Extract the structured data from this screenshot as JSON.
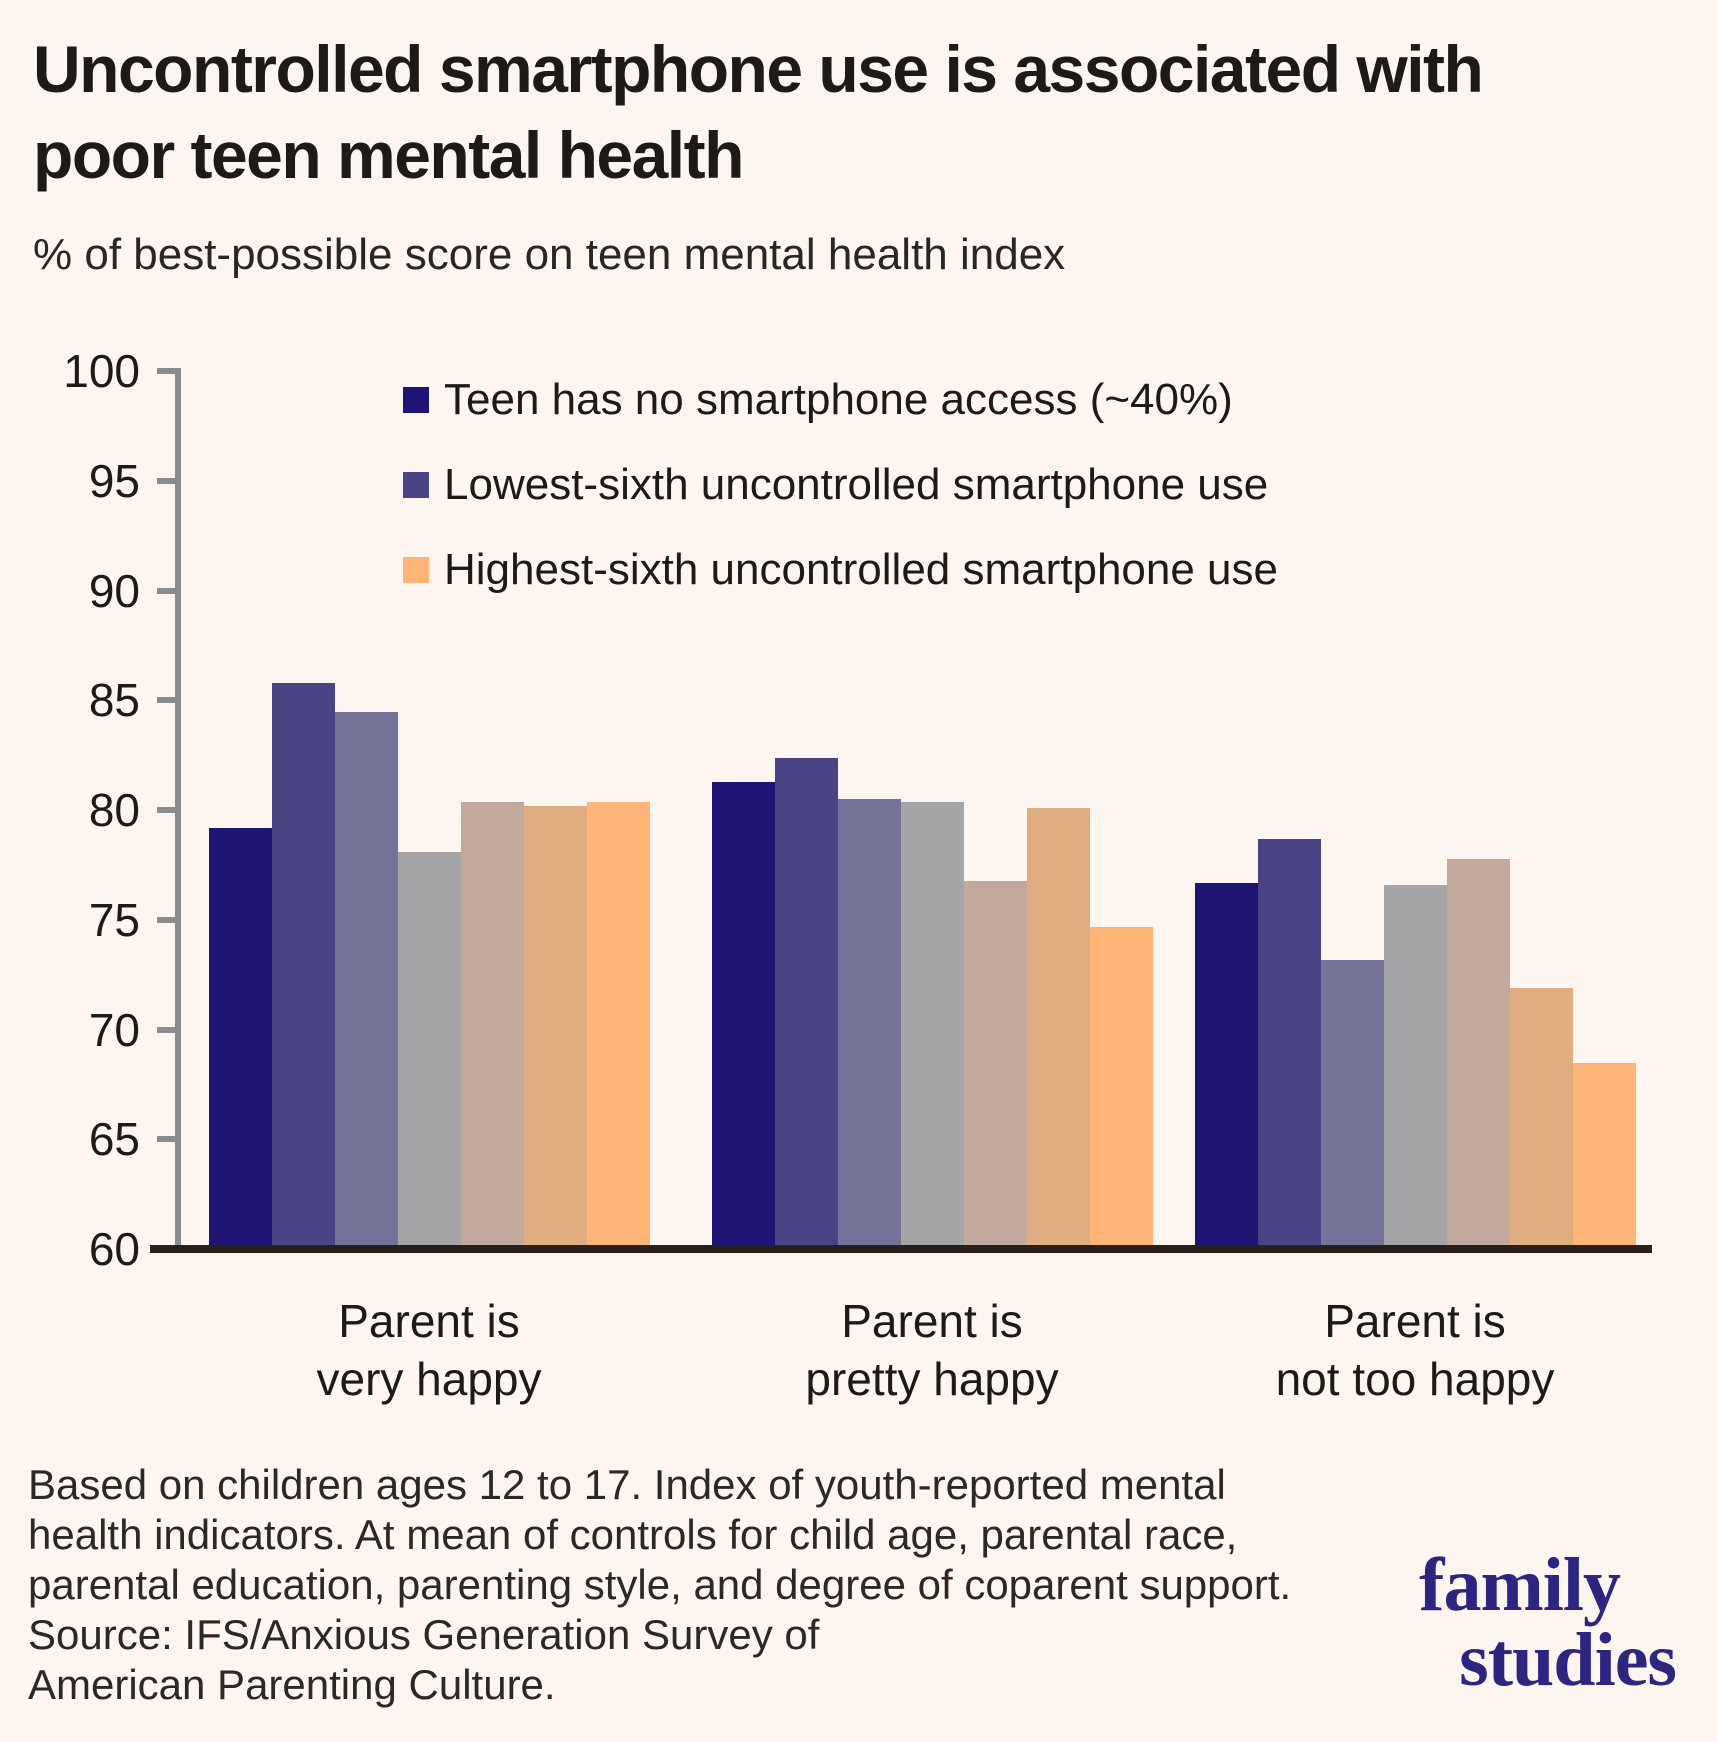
{
  "page": {
    "background": "#fdf5ef"
  },
  "header": {
    "title_line1": "Uncontrolled smartphone use is associated with",
    "title_line2": "poor teen mental health",
    "subtitle": "% of best-possible score on teen mental health index"
  },
  "legend": {
    "items": [
      {
        "label": "Teen has no smartphone access (~40%)",
        "color": "#1f1575"
      },
      {
        "label": "Lowest-sixth uncontrolled smartphone use",
        "color": "#4a4484"
      },
      {
        "label": "Highest-sixth uncontrolled smartphone use",
        "color": "#ffb577"
      }
    ]
  },
  "chart_data": {
    "type": "bar",
    "title": "Uncontrolled smartphone use is associated with poor teen mental health",
    "subtitle": "% of best-possible score on teen mental health index",
    "categories": [
      "Parent is\nvery happy",
      "Parent is\npretty happy",
      "Parent is\nnot too happy"
    ],
    "ylim": [
      60,
      100
    ],
    "yticks": [
      60,
      65,
      70,
      75,
      80,
      85,
      90,
      95,
      100
    ],
    "grid": false,
    "legend_position": "inside-top-left",
    "series": [
      {
        "name": "Teen has no smartphone access (~40%)",
        "color": "#1f1575",
        "values": [
          79.0,
          81.1,
          76.5
        ]
      },
      {
        "name": "Lowest-sixth uncontrolled smartphone use",
        "color": "#4a4484",
        "values": [
          85.6,
          82.2,
          78.5
        ]
      },
      {
        "name": "",
        "color": "#75739a",
        "values": [
          84.3,
          80.3,
          73.0
        ]
      },
      {
        "name": "",
        "color": "#a5a4a6",
        "values": [
          77.9,
          80.2,
          76.4
        ]
      },
      {
        "name": "",
        "color": "#c2a99b",
        "values": [
          80.2,
          76.6,
          77.6
        ]
      },
      {
        "name": "",
        "color": "#e0ad81",
        "values": [
          80.0,
          79.9,
          71.7
        ]
      },
      {
        "name": "Highest-sixth uncontrolled smartphone use",
        "color": "#ffb577",
        "values": [
          80.2,
          74.5,
          68.3
        ]
      }
    ]
  },
  "footnote": {
    "lines": [
      "Based on children ages 12 to 17. Index of youth-reported mental",
      "health indicators. At mean of controls for child age, parental race,",
      "parental education, parenting style, and degree of coparent support.",
      "Source: IFS/Anxious Generation Survey of",
      "American Parenting Culture."
    ]
  },
  "logo": {
    "line1": "family",
    "line2": "studies",
    "color": "#2e2580"
  }
}
